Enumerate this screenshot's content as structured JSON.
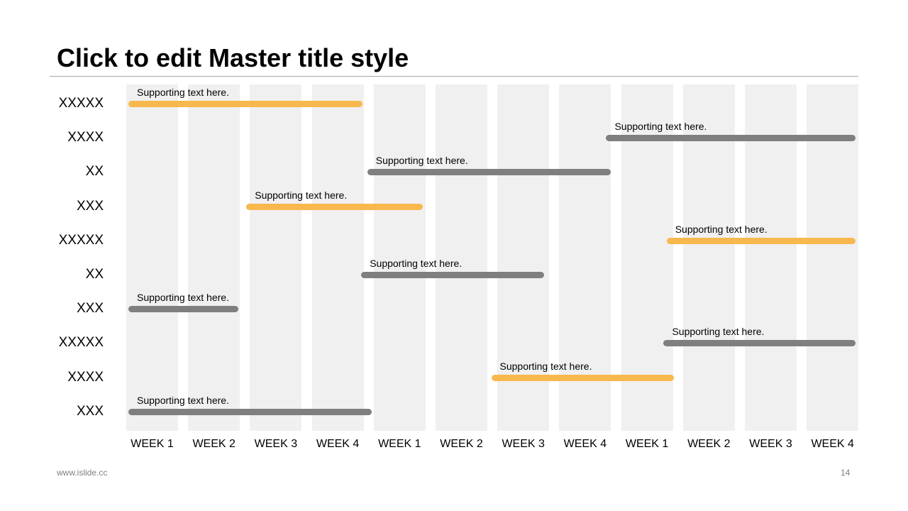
{
  "slide": {
    "title": "Click to edit Master title style",
    "footer_url": "www.islide.cc",
    "page_number": "14"
  },
  "colors": {
    "accent": "#f9b84e",
    "neutral": "#7f7f7f",
    "column_bg": "#f0f0f1",
    "rule": "#a6a6a6"
  },
  "gantt": {
    "weeks": [
      "WEEK 1",
      "WEEK 2",
      "WEEK 3",
      "WEEK 4",
      "WEEK 1",
      "WEEK 2",
      "WEEK 3",
      "WEEK 4",
      "WEEK 1",
      "WEEK 2",
      "WEEK 3",
      "WEEK 4"
    ],
    "rows": [
      {
        "label": "XXXXX",
        "text": "Supporting text here.",
        "color": "accent",
        "start_week": 0.0,
        "end_week": 3.85
      },
      {
        "label": "XXXX",
        "text": "Supporting text here.",
        "color": "neutral",
        "start_week": 7.9,
        "end_week": 12.0
      },
      {
        "label": "XX",
        "text": "Supporting text here.",
        "color": "neutral",
        "start_week": 3.95,
        "end_week": 7.95
      },
      {
        "label": "XXX",
        "text": "Supporting text here.",
        "color": "accent",
        "start_week": 1.95,
        "end_week": 4.85
      },
      {
        "label": "XXXXX",
        "text": "Supporting text here.",
        "color": "accent",
        "start_week": 8.9,
        "end_week": 12.0
      },
      {
        "label": "XX",
        "text": "Supporting text here.",
        "color": "neutral",
        "start_week": 3.85,
        "end_week": 6.85
      },
      {
        "label": "XXX",
        "text": "Supporting text here.",
        "color": "neutral",
        "start_week": 0.0,
        "end_week": 1.8
      },
      {
        "label": "XXXXX",
        "text": "Supporting text here.",
        "color": "neutral",
        "start_week": 8.85,
        "end_week": 12.0
      },
      {
        "label": "XXXX",
        "text": "Supporting text here.",
        "color": "accent",
        "start_week": 6.0,
        "end_week": 9.0
      },
      {
        "label": "XXX",
        "text": "Supporting text here.",
        "color": "neutral",
        "start_week": 0.0,
        "end_week": 4.0
      }
    ]
  }
}
